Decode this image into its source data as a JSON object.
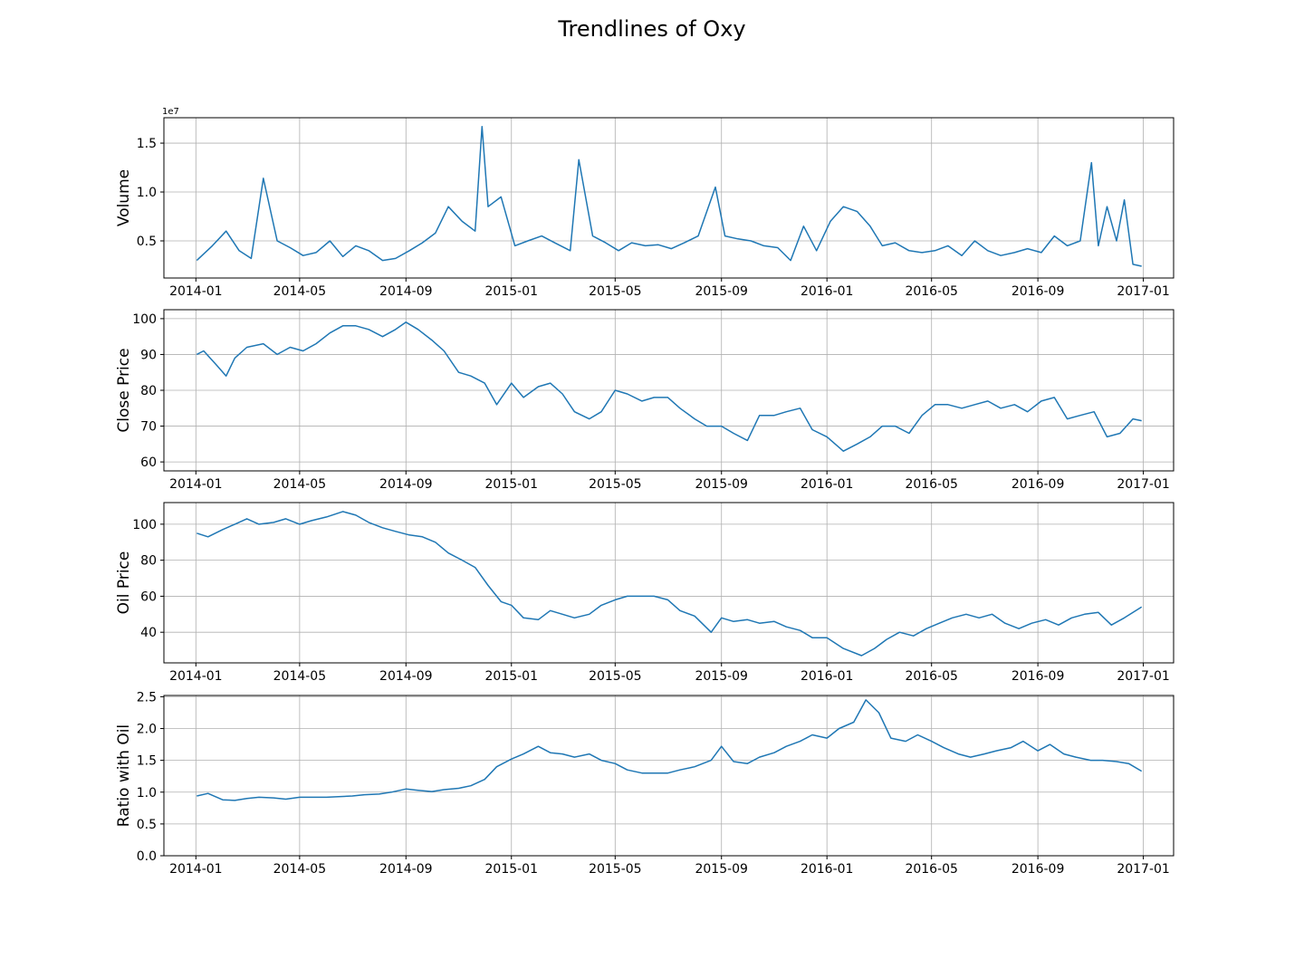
{
  "figure": {
    "title": "Trendlines of Oxy",
    "line_color": "#1f77b4",
    "date_ticks": [
      "2014-01",
      "2014-05",
      "2014-09",
      "2015-01",
      "2015-05",
      "2015-09",
      "2016-01",
      "2016-05",
      "2016-09",
      "2017-01"
    ]
  },
  "chart_data": [
    {
      "type": "line",
      "ylabel": "Volume",
      "y_offset_label": "1e7",
      "xlim": [
        "2013-11-25",
        "2017-02-05"
      ],
      "ylim": [
        1200000,
        17600000
      ],
      "yticks": [
        5000000,
        10000000,
        15000000
      ],
      "ytick_labels": [
        "0.5",
        "1.0",
        "1.5"
      ],
      "grid": true,
      "x": [
        "2014-01-02",
        "2014-01-20",
        "2014-02-05",
        "2014-02-20",
        "2014-03-06",
        "2014-03-20",
        "2014-04-05",
        "2014-04-20",
        "2014-05-05",
        "2014-05-20",
        "2014-06-05",
        "2014-06-20",
        "2014-07-05",
        "2014-07-20",
        "2014-08-05",
        "2014-08-20",
        "2014-09-05",
        "2014-09-20",
        "2014-10-05",
        "2014-10-20",
        "2014-11-05",
        "2014-11-20",
        "2014-11-28",
        "2014-12-05",
        "2014-12-20",
        "2015-01-05",
        "2015-01-20",
        "2015-02-05",
        "2015-02-20",
        "2015-03-10",
        "2015-03-20",
        "2015-04-05",
        "2015-04-20",
        "2015-05-05",
        "2015-05-20",
        "2015-06-05",
        "2015-06-20",
        "2015-07-05",
        "2015-07-20",
        "2015-08-05",
        "2015-08-25",
        "2015-09-05",
        "2015-09-20",
        "2015-10-05",
        "2015-10-20",
        "2015-11-05",
        "2015-11-20",
        "2015-12-05",
        "2015-12-20",
        "2016-01-05",
        "2016-01-20",
        "2016-02-05",
        "2016-02-20",
        "2016-03-05",
        "2016-03-20",
        "2016-04-05",
        "2016-04-20",
        "2016-05-05",
        "2016-05-20",
        "2016-06-05",
        "2016-06-20",
        "2016-07-05",
        "2016-07-20",
        "2016-08-05",
        "2016-08-20",
        "2016-09-05",
        "2016-09-20",
        "2016-10-05",
        "2016-10-20",
        "2016-11-02",
        "2016-11-10",
        "2016-11-20",
        "2016-12-01",
        "2016-12-10",
        "2016-12-20",
        "2016-12-30"
      ],
      "values": [
        3000000,
        4500000,
        6000000,
        4000000,
        3200000,
        11400000,
        5000000,
        4300000,
        3500000,
        3800000,
        5000000,
        3400000,
        4500000,
        4000000,
        3000000,
        3200000,
        4000000,
        4800000,
        5800000,
        8500000,
        7000000,
        6000000,
        16700000,
        8500000,
        9500000,
        4500000,
        5000000,
        5500000,
        4800000,
        4000000,
        13300000,
        5500000,
        4800000,
        4000000,
        4800000,
        4500000,
        4600000,
        4200000,
        4800000,
        5500000,
        10500000,
        5500000,
        5200000,
        5000000,
        4500000,
        4300000,
        3000000,
        6500000,
        4000000,
        7000000,
        8500000,
        8000000,
        6500000,
        4500000,
        4800000,
        4000000,
        3800000,
        4000000,
        4500000,
        3500000,
        5000000,
        4000000,
        3500000,
        3800000,
        4200000,
        3800000,
        5500000,
        4500000,
        5000000,
        13000000,
        4500000,
        8500000,
        5000000,
        9200000,
        2600000,
        2400000
      ]
    },
    {
      "type": "line",
      "ylabel": "Close Price",
      "xlim": [
        "2013-11-25",
        "2017-02-05"
      ],
      "ylim": [
        57.5,
        102.5
      ],
      "yticks": [
        60,
        70,
        80,
        90,
        100
      ],
      "ytick_labels": [
        "60",
        "70",
        "80",
        "90",
        "100"
      ],
      "grid": true,
      "x": [
        "2014-01-02",
        "2014-01-10",
        "2014-01-25",
        "2014-02-05",
        "2014-02-15",
        "2014-03-01",
        "2014-03-20",
        "2014-04-05",
        "2014-04-20",
        "2014-05-05",
        "2014-05-20",
        "2014-06-05",
        "2014-06-20",
        "2014-07-05",
        "2014-07-20",
        "2014-08-05",
        "2014-08-20",
        "2014-09-01",
        "2014-09-15",
        "2014-10-01",
        "2014-10-15",
        "2014-11-01",
        "2014-11-15",
        "2014-12-01",
        "2014-12-15",
        "2015-01-01",
        "2015-01-15",
        "2015-02-01",
        "2015-02-15",
        "2015-03-01",
        "2015-03-15",
        "2015-04-01",
        "2015-04-15",
        "2015-05-01",
        "2015-05-15",
        "2015-06-01",
        "2015-06-15",
        "2015-07-01",
        "2015-07-15",
        "2015-08-01",
        "2015-08-15",
        "2015-09-01",
        "2015-09-15",
        "2015-10-01",
        "2015-10-15",
        "2015-11-01",
        "2015-11-15",
        "2015-12-01",
        "2015-12-15",
        "2016-01-01",
        "2016-01-20",
        "2016-02-05",
        "2016-02-20",
        "2016-03-05",
        "2016-03-20",
        "2016-04-05",
        "2016-04-20",
        "2016-05-05",
        "2016-05-20",
        "2016-06-05",
        "2016-06-20",
        "2016-07-05",
        "2016-07-20",
        "2016-08-05",
        "2016-08-20",
        "2016-09-05",
        "2016-09-20",
        "2016-10-05",
        "2016-10-20",
        "2016-11-05",
        "2016-11-20",
        "2016-12-05",
        "2016-12-20",
        "2016-12-30"
      ],
      "values": [
        90,
        91,
        87,
        84,
        89,
        92,
        93,
        90,
        92,
        91,
        93,
        96,
        98,
        98,
        97,
        95,
        97,
        99,
        97,
        94,
        91,
        85,
        84,
        82,
        76,
        82,
        78,
        81,
        82,
        79,
        74,
        72,
        74,
        80,
        79,
        77,
        78,
        78,
        75,
        72,
        70,
        70,
        68,
        66,
        73,
        73,
        74,
        75,
        69,
        67,
        63,
        65,
        67,
        70,
        70,
        68,
        73,
        76,
        76,
        75,
        76,
        77,
        75,
        76,
        74,
        77,
        78,
        72,
        73,
        74,
        67,
        68,
        72,
        71.5
      ]
    },
    {
      "type": "line",
      "ylabel": "Oil Price",
      "xlim": [
        "2013-11-25",
        "2017-02-05"
      ],
      "ylim": [
        23,
        112
      ],
      "yticks": [
        40,
        60,
        80,
        100
      ],
      "ytick_labels": [
        "40",
        "60",
        "80",
        "100"
      ],
      "grid": true,
      "x": [
        "2014-01-02",
        "2014-01-15",
        "2014-02-01",
        "2014-02-15",
        "2014-03-01",
        "2014-03-15",
        "2014-04-01",
        "2014-04-15",
        "2014-05-01",
        "2014-05-15",
        "2014-06-01",
        "2014-06-20",
        "2014-07-05",
        "2014-07-20",
        "2014-08-05",
        "2014-08-20",
        "2014-09-05",
        "2014-09-20",
        "2014-10-05",
        "2014-10-20",
        "2014-11-05",
        "2014-11-20",
        "2014-12-05",
        "2014-12-20",
        "2015-01-01",
        "2015-01-15",
        "2015-02-01",
        "2015-02-15",
        "2015-03-01",
        "2015-03-15",
        "2015-04-01",
        "2015-04-15",
        "2015-05-01",
        "2015-05-15",
        "2015-06-01",
        "2015-06-15",
        "2015-07-01",
        "2015-07-15",
        "2015-08-01",
        "2015-08-20",
        "2015-09-01",
        "2015-09-15",
        "2015-10-01",
        "2015-10-15",
        "2015-11-01",
        "2015-11-15",
        "2015-12-01",
        "2015-12-15",
        "2016-01-01",
        "2016-01-20",
        "2016-02-10",
        "2016-02-25",
        "2016-03-10",
        "2016-03-25",
        "2016-04-10",
        "2016-04-25",
        "2016-05-10",
        "2016-05-25",
        "2016-06-10",
        "2016-06-25",
        "2016-07-10",
        "2016-07-25",
        "2016-08-10",
        "2016-08-25",
        "2016-09-10",
        "2016-09-25",
        "2016-10-10",
        "2016-10-25",
        "2016-11-10",
        "2016-11-25",
        "2016-12-10",
        "2016-12-30"
      ],
      "values": [
        95,
        93,
        97,
        100,
        103,
        100,
        101,
        103,
        100,
        102,
        104,
        107,
        105,
        101,
        98,
        96,
        94,
        93,
        90,
        84,
        80,
        76,
        66,
        57,
        55,
        48,
        47,
        52,
        50,
        48,
        50,
        55,
        58,
        60,
        60,
        60,
        58,
        52,
        49,
        40,
        48,
        46,
        47,
        45,
        46,
        43,
        41,
        37,
        37,
        31,
        27,
        31,
        36,
        40,
        38,
        42,
        45,
        48,
        50,
        48,
        50,
        45,
        42,
        45,
        47,
        44,
        48,
        50,
        51,
        44,
        48,
        54
      ]
    },
    {
      "type": "line",
      "ylabel": "Ratio with Oil",
      "xlim": [
        "2013-11-25",
        "2017-02-05"
      ],
      "ylim": [
        0,
        2.52
      ],
      "yticks": [
        0,
        0.5,
        1.0,
        1.5,
        2.0,
        2.5
      ],
      "ytick_labels": [
        "0.0",
        "0.5",
        "1.0",
        "1.5",
        "2.0",
        "2.5"
      ],
      "grid": true,
      "x": [
        "2014-01-02",
        "2014-01-15",
        "2014-02-01",
        "2014-02-15",
        "2014-03-01",
        "2014-03-15",
        "2014-04-01",
        "2014-04-15",
        "2014-05-01",
        "2014-05-15",
        "2014-06-01",
        "2014-06-15",
        "2014-07-01",
        "2014-07-15",
        "2014-08-01",
        "2014-08-15",
        "2014-09-01",
        "2014-09-15",
        "2014-10-01",
        "2014-10-15",
        "2014-11-01",
        "2014-11-15",
        "2014-12-01",
        "2014-12-15",
        "2015-01-01",
        "2015-01-15",
        "2015-02-01",
        "2015-02-15",
        "2015-03-01",
        "2015-03-15",
        "2015-04-01",
        "2015-04-15",
        "2015-05-01",
        "2015-05-15",
        "2015-06-01",
        "2015-06-15",
        "2015-07-01",
        "2015-07-15",
        "2015-08-01",
        "2015-08-20",
        "2015-09-01",
        "2015-09-15",
        "2015-10-01",
        "2015-10-15",
        "2015-11-01",
        "2015-11-15",
        "2015-12-01",
        "2015-12-15",
        "2016-01-01",
        "2016-01-15",
        "2016-02-01",
        "2016-02-15",
        "2016-03-01",
        "2016-03-15",
        "2016-04-01",
        "2016-04-15",
        "2016-05-01",
        "2016-05-15",
        "2016-06-01",
        "2016-06-15",
        "2016-07-01",
        "2016-07-15",
        "2016-08-01",
        "2016-08-15",
        "2016-09-01",
        "2016-09-15",
        "2016-10-01",
        "2016-10-15",
        "2016-11-01",
        "2016-11-15",
        "2016-12-01",
        "2016-12-15",
        "2016-12-30"
      ],
      "values": [
        0.94,
        0.98,
        0.88,
        0.87,
        0.9,
        0.92,
        0.91,
        0.89,
        0.92,
        0.92,
        0.92,
        0.93,
        0.94,
        0.96,
        0.97,
        1.0,
        1.05,
        1.03,
        1.01,
        1.04,
        1.06,
        1.1,
        1.2,
        1.4,
        1.52,
        1.6,
        1.72,
        1.62,
        1.6,
        1.55,
        1.6,
        1.5,
        1.45,
        1.35,
        1.3,
        1.3,
        1.3,
        1.35,
        1.4,
        1.5,
        1.72,
        1.48,
        1.45,
        1.55,
        1.62,
        1.72,
        1.8,
        1.9,
        1.85,
        2.0,
        2.1,
        2.45,
        2.25,
        1.85,
        1.8,
        1.9,
        1.8,
        1.7,
        1.6,
        1.55,
        1.6,
        1.65,
        1.7,
        1.8,
        1.65,
        1.75,
        1.6,
        1.55,
        1.5,
        1.5,
        1.48,
        1.45,
        1.33
      ]
    }
  ]
}
